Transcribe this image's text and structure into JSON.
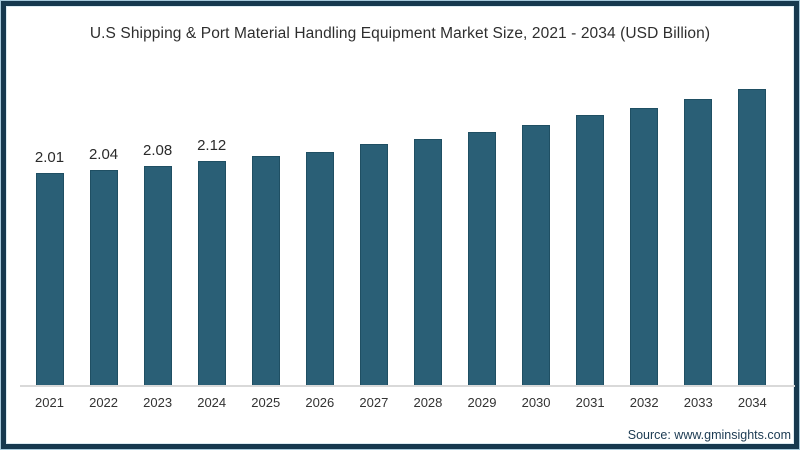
{
  "title": "U.S Shipping & Port Material Handling Equipment Market Size, 2021 - 2034 (USD Billion)",
  "source": "Source: www.gminsights.com",
  "chart_data": {
    "type": "bar",
    "title": "U.S Shipping & Port Material Handling Equipment Market Size, 2021 - 2034 (USD Billion)",
    "unit": "USD Billion",
    "categories": [
      "2021",
      "2022",
      "2023",
      "2024",
      "2025",
      "2026",
      "2027",
      "2028",
      "2029",
      "2030",
      "2031",
      "2032",
      "2033",
      "2034"
    ],
    "values": [
      2.01,
      2.04,
      2.08,
      2.12,
      2.17,
      2.21,
      2.28,
      2.33,
      2.4,
      2.46,
      2.56,
      2.62,
      2.71,
      2.8
    ],
    "data_labels": [
      "2.01",
      "2.04",
      "2.08",
      "2.12",
      "",
      "",
      "",
      "",
      "",
      "",
      "",
      "",
      "",
      ""
    ],
    "xlabel": "",
    "ylabel": "",
    "ylim": [
      0,
      3.0
    ],
    "grid": false,
    "legend": false,
    "bar_color": "#2a5f76",
    "bar_border_color": "#1f4f63",
    "axis_line_color": "#d9d9d9"
  },
  "colors": {
    "frame_border": "#16394f",
    "frame_outer_line": "#a6c9db",
    "frame_inner_line": "#dcebf2",
    "title_text": "#2e2e2e",
    "label_text": "#2a2a2a",
    "tick_text": "#333333",
    "source_text": "#1b3a52"
  }
}
